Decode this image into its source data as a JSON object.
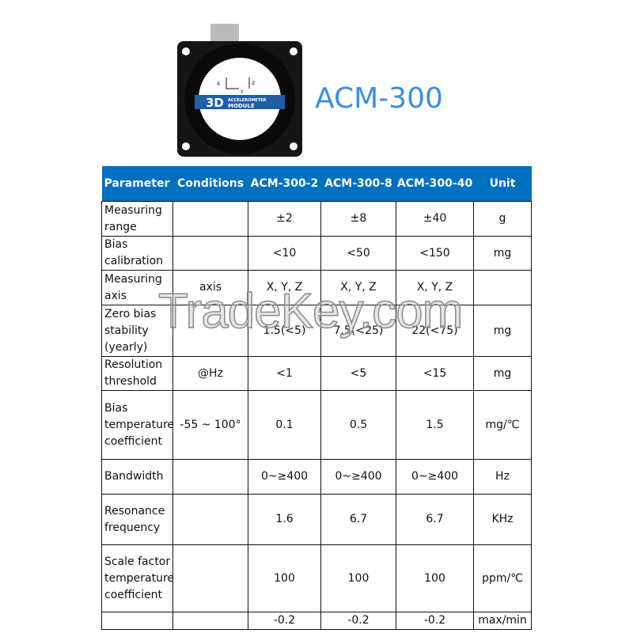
{
  "product": {
    "title": "ACM-300",
    "badge_main": "3D",
    "badge_line1": "ACCELEROMETER",
    "badge_line2": "MODULE",
    "axes": [
      "X",
      "Y",
      "Z"
    ]
  },
  "table": {
    "headers": [
      "Parameter",
      "Conditions",
      "ACM-300-2",
      "ACM-300-8",
      "ACM-300-40",
      "Unit"
    ],
    "rows": [
      [
        "Measuring range",
        "",
        "±2",
        "±8",
        "±40",
        "g"
      ],
      [
        "Bias calibration",
        "",
        "<10",
        "<50",
        "<150",
        "mg"
      ],
      [
        "Measuring axis",
        "axis",
        "X, Y, Z",
        "X, Y, Z",
        "X, Y, Z",
        ""
      ],
      [
        "Zero bias stability (yearly)",
        "",
        "1.5(<5)",
        "7.5(<25)",
        "22(<75)",
        "mg"
      ],
      [
        "Resolution threshold",
        "@Hz",
        "<1",
        "<5",
        "<15",
        "mg"
      ],
      [
        "Bias temperature coefficient",
        "-55 ~ 100°",
        "0.1",
        "0.5",
        "1.5",
        "mg/℃"
      ],
      [
        "Bandwidth",
        "",
        "0~≥400",
        "0~≥400",
        "0~≥400",
        "Hz"
      ],
      [
        "Resonance frequency",
        "",
        "1.6",
        "6.7",
        "6.7",
        "KHz"
      ],
      [
        "Scale factor temperature coefficient",
        "",
        "100",
        "100",
        "100",
        "ppm/℃"
      ],
      [
        "",
        "",
        "-0.2",
        "-0.2",
        "-0.2",
        "max/min"
      ]
    ]
  },
  "watermark": "TradeKey.com",
  "colors": {
    "header_bg": "#0070c0",
    "title": "#3a8ee6"
  }
}
